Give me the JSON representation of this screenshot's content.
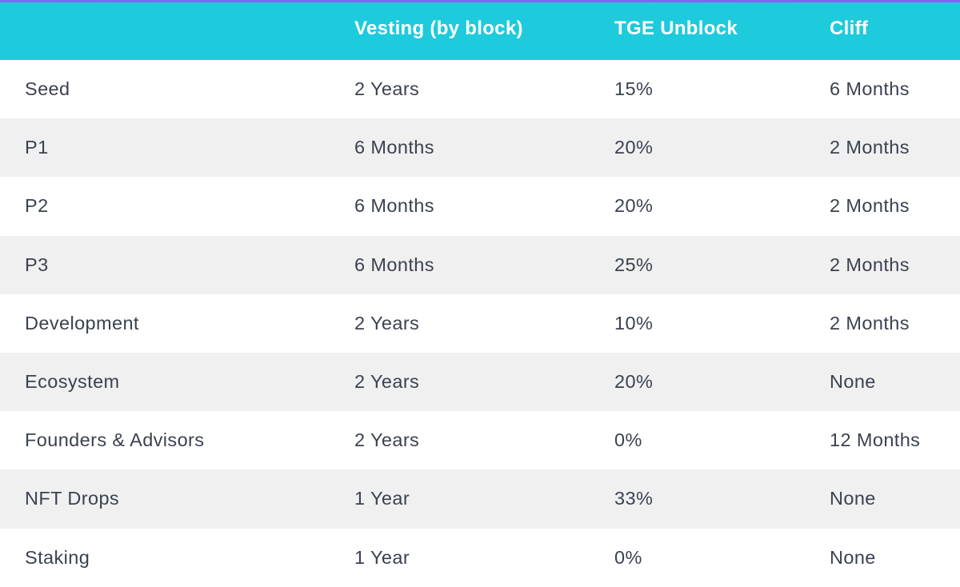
{
  "table": {
    "header": [
      "Vesting (by block)",
      "TGE Unblock",
      "Cliff"
    ],
    "rows": [
      [
        "Seed",
        "2 Years",
        "15%",
        "6 Months"
      ],
      [
        "P1",
        "6 Months",
        "20%",
        "2 Months"
      ],
      [
        "P2",
        "6 Months",
        "20%",
        "2 Months"
      ],
      [
        "P3",
        "6 Months",
        "25%",
        "2 Months"
      ],
      [
        "Development",
        "2 Years",
        "10%",
        "2 Months"
      ],
      [
        "Ecosystem",
        "2 Years",
        "20%",
        "None"
      ],
      [
        "Founders & Advisors",
        "2 Years",
        "0%",
        "12 Months"
      ],
      [
        "NFT Drops",
        "1 Year",
        "33%",
        "None"
      ],
      [
        "Staking",
        "1 Year",
        "0%",
        "None"
      ]
    ]
  }
}
